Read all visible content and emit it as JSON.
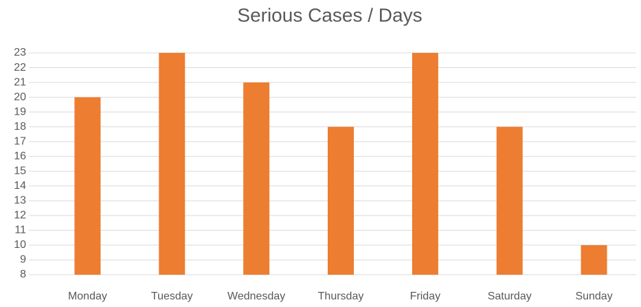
{
  "chart_data": {
    "type": "bar",
    "title": "Serious Cases / Days",
    "categories": [
      "Monday",
      "Tuesday",
      "Wednesday",
      "Thursday",
      "Friday",
      "Saturday",
      "Sunday"
    ],
    "values": [
      20,
      23,
      21,
      18,
      23,
      18,
      10
    ],
    "color": "#ed7d31",
    "ylim": [
      8,
      23
    ],
    "yticks": [
      8,
      9,
      10,
      11,
      12,
      13,
      14,
      15,
      16,
      17,
      18,
      19,
      20,
      21,
      22,
      23
    ],
    "grid": true
  }
}
